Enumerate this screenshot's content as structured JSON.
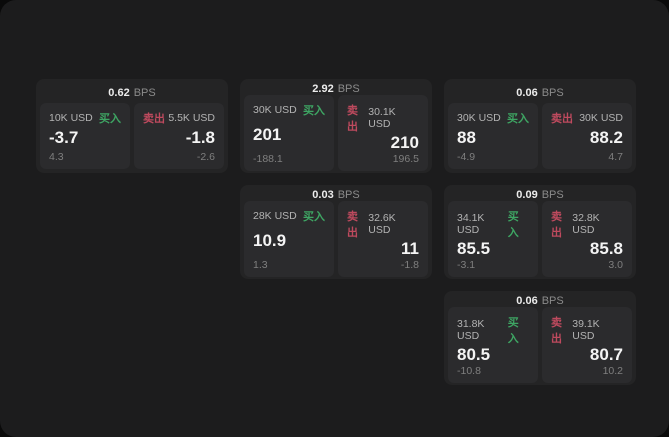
{
  "colors": {
    "panel_background": "#1c1c1d",
    "card_background": "#242425",
    "tile_background": "#2b2b2d",
    "buy_green": "#3ea563",
    "sell_red": "#bf4a5e"
  },
  "spread_unit_label": "BPS",
  "cards": [
    {
      "spread": "0.62",
      "unit": "BPS",
      "buy": {
        "size": "10K USD",
        "side": "买入",
        "price": "-3.7",
        "change": "4.3"
      },
      "sell": {
        "side": "卖出",
        "size": "5.5K USD",
        "price": "-1.8",
        "change": "-2.6"
      }
    },
    {
      "spread": "2.92",
      "unit": "BPS",
      "buy": {
        "size": "30K USD",
        "side": "买入",
        "price": "201",
        "change": "-188.1"
      },
      "sell": {
        "side": "卖出",
        "size": "30.1K USD",
        "price": "210",
        "change": "196.5"
      }
    },
    {
      "spread": "0.06",
      "unit": "BPS",
      "buy": {
        "size": "30K USD",
        "side": "买入",
        "price": "88",
        "change": "-4.9"
      },
      "sell": {
        "side": "卖出",
        "size": "30K USD",
        "price": "88.2",
        "change": "4.7"
      }
    },
    {
      "spread": "0.03",
      "unit": "BPS",
      "buy": {
        "size": "28K USD",
        "side": "买入",
        "price": "10.9",
        "change": "1.3"
      },
      "sell": {
        "side": "卖出",
        "size": "32.6K USD",
        "price": "11",
        "change": "-1.8"
      }
    },
    {
      "spread": "0.09",
      "unit": "BPS",
      "buy": {
        "size": "34.1K USD",
        "side": "买入",
        "price": "85.5",
        "change": "-3.1"
      },
      "sell": {
        "side": "卖出",
        "size": "32.8K USD",
        "price": "85.8",
        "change": "3.0"
      }
    },
    {
      "spread": "0.06",
      "unit": "BPS",
      "buy": {
        "size": "31.8K USD",
        "side": "买入",
        "price": "80.5",
        "change": "-10.8"
      },
      "sell": {
        "side": "卖出",
        "size": "39.1K USD",
        "price": "80.7",
        "change": "10.2"
      }
    }
  ]
}
